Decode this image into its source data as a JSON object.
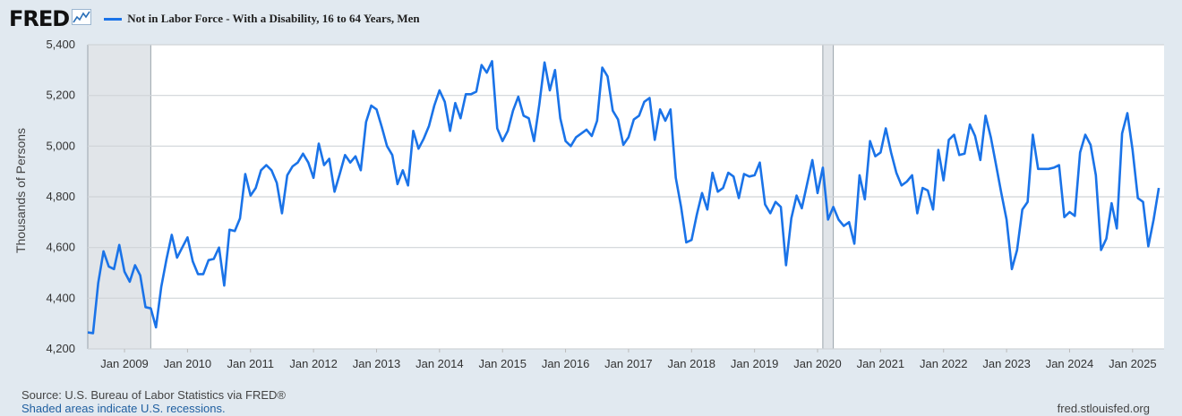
{
  "header": {
    "logo_text": "FRED",
    "series_name": "Not in Labor Force - With a Disability, 16 to 64 Years, Men",
    "series_color": "#1a73e8"
  },
  "footer": {
    "source": "U.S. Bureau of Labor Statistics via FRED®",
    "note": "Shaded areas indicate U.S. recessions.",
    "site": "fred.stlouisfed.org"
  },
  "chart_data": {
    "type": "line",
    "title": "",
    "ylabel": "Thousands of Persons",
    "xlabel": "",
    "ylim": [
      4200,
      5400
    ],
    "xlim": [
      "2008-06",
      "2025-07"
    ],
    "y_ticks": [
      "4,200",
      "4,400",
      "4,600",
      "4,800",
      "5,000",
      "5,200",
      "5,400"
    ],
    "y_tick_values": [
      4200,
      4400,
      4600,
      4800,
      5000,
      5200,
      5400
    ],
    "x_ticks": [
      "Jan 2009",
      "Jan 2010",
      "Jan 2011",
      "Jan 2012",
      "Jan 2013",
      "Jan 2014",
      "Jan 2015",
      "Jan 2016",
      "Jan 2017",
      "Jan 2018",
      "Jan 2019",
      "Jan 2020",
      "Jan 2021",
      "Jan 2022",
      "Jan 2023",
      "Jan 2024",
      "Jan 2025"
    ],
    "x_tick_dates": [
      "2009-01",
      "2010-01",
      "2011-01",
      "2012-01",
      "2013-01",
      "2014-01",
      "2015-01",
      "2016-01",
      "2017-01",
      "2018-01",
      "2019-01",
      "2020-01",
      "2021-01",
      "2022-01",
      "2023-01",
      "2024-01",
      "2025-01"
    ],
    "recessions": [
      [
        "2008-06",
        "2009-06"
      ],
      [
        "2020-02",
        "2020-04"
      ]
    ],
    "grid": true,
    "legend": "top-left",
    "series": [
      {
        "name": "Not in Labor Force - With a Disability, 16 to 64 Years, Men",
        "color": "#1a73e8",
        "points": [
          [
            "2008-06",
            4265
          ],
          [
            "2008-07",
            4262
          ],
          [
            "2008-08",
            4460
          ],
          [
            "2008-09",
            4585
          ],
          [
            "2008-10",
            4525
          ],
          [
            "2008-11",
            4515
          ],
          [
            "2008-12",
            4610
          ],
          [
            "2009-01",
            4505
          ],
          [
            "2009-02",
            4465
          ],
          [
            "2009-03",
            4530
          ],
          [
            "2009-04",
            4490
          ],
          [
            "2009-05",
            4365
          ],
          [
            "2009-06",
            4360
          ],
          [
            "2009-07",
            4285
          ],
          [
            "2009-08",
            4445
          ],
          [
            "2009-09",
            4555
          ],
          [
            "2009-10",
            4650
          ],
          [
            "2009-11",
            4560
          ],
          [
            "2009-12",
            4600
          ],
          [
            "2010-01",
            4640
          ],
          [
            "2010-02",
            4545
          ],
          [
            "2010-03",
            4495
          ],
          [
            "2010-04",
            4495
          ],
          [
            "2010-05",
            4550
          ],
          [
            "2010-06",
            4555
          ],
          [
            "2010-07",
            4600
          ],
          [
            "2010-08",
            4450
          ],
          [
            "2010-09",
            4670
          ],
          [
            "2010-10",
            4665
          ],
          [
            "2010-11",
            4715
          ],
          [
            "2010-12",
            4890
          ],
          [
            "2011-01",
            4805
          ],
          [
            "2011-02",
            4835
          ],
          [
            "2011-03",
            4905
          ],
          [
            "2011-04",
            4925
          ],
          [
            "2011-05",
            4905
          ],
          [
            "2011-06",
            4855
          ],
          [
            "2011-07",
            4735
          ],
          [
            "2011-08",
            4885
          ],
          [
            "2011-09",
            4920
          ],
          [
            "2011-10",
            4935
          ],
          [
            "2011-11",
            4970
          ],
          [
            "2011-12",
            4935
          ],
          [
            "2012-01",
            4875
          ],
          [
            "2012-02",
            5010
          ],
          [
            "2012-03",
            4925
          ],
          [
            "2012-04",
            4950
          ],
          [
            "2012-05",
            4820
          ],
          [
            "2012-06",
            4890
          ],
          [
            "2012-07",
            4965
          ],
          [
            "2012-08",
            4935
          ],
          [
            "2012-09",
            4960
          ],
          [
            "2012-10",
            4905
          ],
          [
            "2012-11",
            5095
          ],
          [
            "2012-12",
            5160
          ],
          [
            "2013-01",
            5145
          ],
          [
            "2013-02",
            5075
          ],
          [
            "2013-03",
            5000
          ],
          [
            "2013-04",
            4965
          ],
          [
            "2013-05",
            4850
          ],
          [
            "2013-06",
            4905
          ],
          [
            "2013-07",
            4845
          ],
          [
            "2013-08",
            5060
          ],
          [
            "2013-09",
            4990
          ],
          [
            "2013-10",
            5030
          ],
          [
            "2013-11",
            5080
          ],
          [
            "2013-12",
            5160
          ],
          [
            "2014-01",
            5220
          ],
          [
            "2014-02",
            5175
          ],
          [
            "2014-03",
            5060
          ],
          [
            "2014-04",
            5170
          ],
          [
            "2014-05",
            5110
          ],
          [
            "2014-06",
            5205
          ],
          [
            "2014-07",
            5205
          ],
          [
            "2014-08",
            5215
          ],
          [
            "2014-09",
            5320
          ],
          [
            "2014-10",
            5290
          ],
          [
            "2014-11",
            5335
          ],
          [
            "2014-12",
            5070
          ],
          [
            "2015-01",
            5020
          ],
          [
            "2015-02",
            5060
          ],
          [
            "2015-03",
            5140
          ],
          [
            "2015-04",
            5195
          ],
          [
            "2015-05",
            5120
          ],
          [
            "2015-06",
            5110
          ],
          [
            "2015-07",
            5020
          ],
          [
            "2015-08",
            5165
          ],
          [
            "2015-09",
            5330
          ],
          [
            "2015-10",
            5220
          ],
          [
            "2015-11",
            5300
          ],
          [
            "2015-12",
            5110
          ],
          [
            "2016-01",
            5020
          ],
          [
            "2016-02",
            5000
          ],
          [
            "2016-03",
            5035
          ],
          [
            "2016-04",
            5050
          ],
          [
            "2016-05",
            5065
          ],
          [
            "2016-06",
            5040
          ],
          [
            "2016-07",
            5100
          ],
          [
            "2016-08",
            5310
          ],
          [
            "2016-09",
            5275
          ],
          [
            "2016-10",
            5140
          ],
          [
            "2016-11",
            5105
          ],
          [
            "2016-12",
            5005
          ],
          [
            "2017-01",
            5035
          ],
          [
            "2017-02",
            5105
          ],
          [
            "2017-03",
            5120
          ],
          [
            "2017-04",
            5175
          ],
          [
            "2017-05",
            5190
          ],
          [
            "2017-06",
            5025
          ],
          [
            "2017-07",
            5145
          ],
          [
            "2017-08",
            5100
          ],
          [
            "2017-09",
            5145
          ],
          [
            "2017-10",
            4875
          ],
          [
            "2017-11",
            4760
          ],
          [
            "2017-12",
            4620
          ],
          [
            "2018-01",
            4630
          ],
          [
            "2018-02",
            4730
          ],
          [
            "2018-03",
            4815
          ],
          [
            "2018-04",
            4750
          ],
          [
            "2018-05",
            4895
          ],
          [
            "2018-06",
            4820
          ],
          [
            "2018-07",
            4835
          ],
          [
            "2018-08",
            4895
          ],
          [
            "2018-09",
            4880
          ],
          [
            "2018-10",
            4795
          ],
          [
            "2018-11",
            4890
          ],
          [
            "2018-12",
            4880
          ],
          [
            "2019-01",
            4885
          ],
          [
            "2019-02",
            4935
          ],
          [
            "2019-03",
            4770
          ],
          [
            "2019-04",
            4735
          ],
          [
            "2019-05",
            4780
          ],
          [
            "2019-06",
            4760
          ],
          [
            "2019-07",
            4530
          ],
          [
            "2019-08",
            4715
          ],
          [
            "2019-09",
            4805
          ],
          [
            "2019-10",
            4755
          ],
          [
            "2019-11",
            4850
          ],
          [
            "2019-12",
            4945
          ],
          [
            "2020-01",
            4815
          ],
          [
            "2020-02",
            4915
          ],
          [
            "2020-03",
            4710
          ],
          [
            "2020-04",
            4760
          ],
          [
            "2020-05",
            4710
          ],
          [
            "2020-06",
            4685
          ],
          [
            "2020-07",
            4700
          ],
          [
            "2020-08",
            4615
          ],
          [
            "2020-09",
            4885
          ],
          [
            "2020-10",
            4790
          ],
          [
            "2020-11",
            5020
          ],
          [
            "2020-12",
            4960
          ],
          [
            "2021-01",
            4975
          ],
          [
            "2021-02",
            5070
          ],
          [
            "2021-03",
            4975
          ],
          [
            "2021-04",
            4895
          ],
          [
            "2021-05",
            4845
          ],
          [
            "2021-06",
            4860
          ],
          [
            "2021-07",
            4885
          ],
          [
            "2021-08",
            4735
          ],
          [
            "2021-09",
            4835
          ],
          [
            "2021-10",
            4825
          ],
          [
            "2021-11",
            4750
          ],
          [
            "2021-12",
            4985
          ],
          [
            "2022-01",
            4865
          ],
          [
            "2022-02",
            5025
          ],
          [
            "2022-03",
            5045
          ],
          [
            "2022-04",
            4965
          ],
          [
            "2022-05",
            4970
          ],
          [
            "2022-06",
            5085
          ],
          [
            "2022-07",
            5040
          ],
          [
            "2022-08",
            4945
          ],
          [
            "2022-09",
            5120
          ],
          [
            "2022-10",
            5035
          ],
          [
            "2022-11",
            4925
          ],
          [
            "2022-12",
            4815
          ],
          [
            "2023-01",
            4710
          ],
          [
            "2023-02",
            4515
          ],
          [
            "2023-03",
            4590
          ],
          [
            "2023-04",
            4750
          ],
          [
            "2023-05",
            4780
          ],
          [
            "2023-06",
            5045
          ],
          [
            "2023-07",
            4910
          ],
          [
            "2023-08",
            4910
          ],
          [
            "2023-09",
            4910
          ],
          [
            "2023-10",
            4915
          ],
          [
            "2023-11",
            4925
          ],
          [
            "2023-12",
            4720
          ],
          [
            "2024-01",
            4740
          ],
          [
            "2024-02",
            4725
          ],
          [
            "2024-03",
            4975
          ],
          [
            "2024-04",
            5045
          ],
          [
            "2024-05",
            5005
          ],
          [
            "2024-06",
            4885
          ],
          [
            "2024-07",
            4590
          ],
          [
            "2024-08",
            4635
          ],
          [
            "2024-09",
            4775
          ],
          [
            "2024-10",
            4675
          ],
          [
            "2024-11",
            5050
          ],
          [
            "2024-12",
            5130
          ],
          [
            "2025-01",
            4985
          ],
          [
            "2025-02",
            4795
          ],
          [
            "2025-03",
            4780
          ],
          [
            "2025-04",
            4605
          ],
          [
            "2025-05",
            4710
          ],
          [
            "2025-06",
            4835
          ]
        ]
      }
    ]
  }
}
